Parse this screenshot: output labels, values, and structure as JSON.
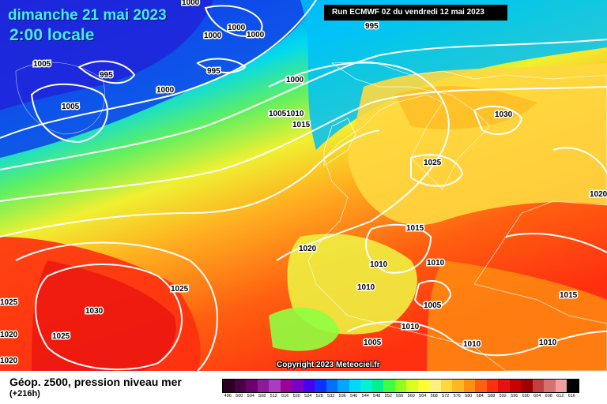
{
  "header": {
    "date": "dimanche 21 mai 2023",
    "time": "2:00 locale",
    "run": "Run ECMWF 0Z du vendredi 12 mai 2023"
  },
  "copyright": "Copyright 2023 Meteociel.fr",
  "legend": {
    "title": "Géop. z500, pression niveau mer",
    "subtitle": "(+216h)",
    "scale": [
      {
        "label": "496",
        "color": "#2a0020"
      },
      {
        "label": "500",
        "color": "#4a0046"
      },
      {
        "label": "504",
        "color": "#6a006e"
      },
      {
        "label": "508",
        "color": "#8e1a9a"
      },
      {
        "label": "512",
        "color": "#a83cc2"
      },
      {
        "label": "516",
        "color": "#9e0098"
      },
      {
        "label": "520",
        "color": "#7a00c8"
      },
      {
        "label": "524",
        "color": "#4a00f0"
      },
      {
        "label": "528",
        "color": "#1030ff"
      },
      {
        "label": "532",
        "color": "#0070ff"
      },
      {
        "label": "536",
        "color": "#00a8ff"
      },
      {
        "label": "540",
        "color": "#00d8ff"
      },
      {
        "label": "544",
        "color": "#00f0d8"
      },
      {
        "label": "548",
        "color": "#00f090"
      },
      {
        "label": "552",
        "color": "#40ff40"
      },
      {
        "label": "556",
        "color": "#90ff20"
      },
      {
        "label": "560",
        "color": "#d8ff20"
      },
      {
        "label": "564",
        "color": "#ffff30"
      },
      {
        "label": "568",
        "color": "#fff080"
      },
      {
        "label": "572",
        "color": "#ffd840"
      },
      {
        "label": "576",
        "color": "#ffb820"
      },
      {
        "label": "580",
        "color": "#ff9010"
      },
      {
        "label": "584",
        "color": "#ff6010"
      },
      {
        "label": "588",
        "color": "#ff3010"
      },
      {
        "label": "592",
        "color": "#e81010"
      },
      {
        "label": "596",
        "color": "#c80000"
      },
      {
        "label": "600",
        "color": "#a00000"
      },
      {
        "label": "604",
        "color": "#c04040"
      },
      {
        "label": "608",
        "color": "#d87070"
      },
      {
        "label": "612",
        "color": "#f0a0a0"
      },
      {
        "label": "616",
        "color": "#000000"
      }
    ]
  },
  "isobar_labels": [
    "1000",
    "1000",
    "1000",
    "1000",
    "995",
    "995",
    "995",
    "1005",
    "1005",
    "1000",
    "1000",
    "10051010",
    "1015",
    "1030",
    "1025",
    "1020",
    "1015",
    "1020",
    "1010",
    "1010",
    "1010",
    "1005",
    "1010",
    "1005",
    "1010",
    "1010",
    "1015",
    "1025",
    "1030",
    "1025",
    "1020",
    "1025",
    "1020"
  ]
}
